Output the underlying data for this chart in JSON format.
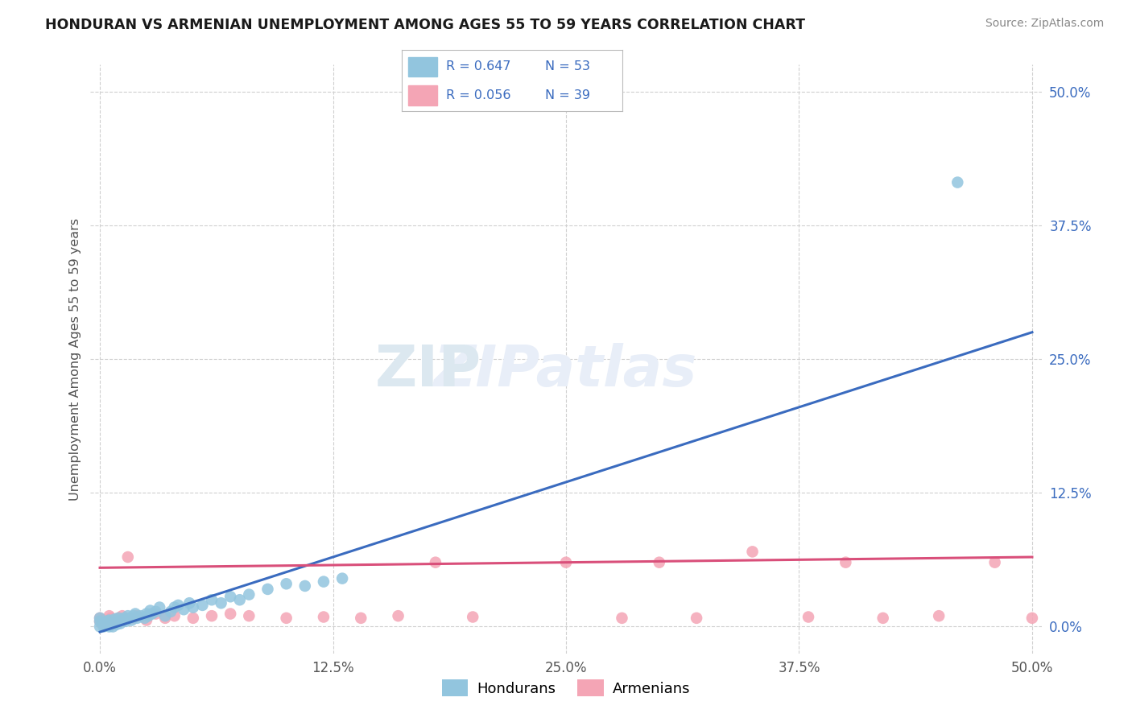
{
  "title": "HONDURAN VS ARMENIAN UNEMPLOYMENT AMONG AGES 55 TO 59 YEARS CORRELATION CHART",
  "source": "Source: ZipAtlas.com",
  "ylabel": "Unemployment Among Ages 55 to 59 years",
  "xlim": [
    -0.005,
    0.505
  ],
  "ylim": [
    -0.025,
    0.525
  ],
  "xticks": [
    0.0,
    0.125,
    0.25,
    0.375,
    0.5
  ],
  "xtick_labels": [
    "0.0%",
    "12.5%",
    "25.0%",
    "37.5%",
    "50.0%"
  ],
  "ytick_vals": [
    0.0,
    0.125,
    0.25,
    0.375,
    0.5
  ],
  "ytick_labels": [
    "0.0%",
    "12.5%",
    "25.0%",
    "37.5%",
    "50.0%"
  ],
  "blue_color": "#92c5de",
  "pink_color": "#f4a5b5",
  "blue_line_color": "#3a6bbf",
  "pink_line_color": "#d94f7a",
  "title_color": "#1a1a1a",
  "source_color": "#888888",
  "label_color": "#3a6bbf",
  "background_color": "#ffffff",
  "grid_color": "#d0d0d0",
  "watermark_color": "#e8eef8",
  "hon_r": 0.647,
  "hon_n": 53,
  "arm_r": 0.056,
  "arm_n": 39,
  "hon_line_x0": 0.0,
  "hon_line_y0": -0.005,
  "hon_line_x1": 0.5,
  "hon_line_y1": 0.275,
  "arm_line_x0": 0.0,
  "arm_line_y0": 0.055,
  "arm_line_x1": 0.5,
  "arm_line_y1": 0.065,
  "honduran_x": [
    0.0,
    0.0,
    0.0,
    0.002,
    0.002,
    0.003,
    0.004,
    0.005,
    0.005,
    0.006,
    0.007,
    0.008,
    0.008,
    0.009,
    0.01,
    0.01,
    0.011,
    0.012,
    0.013,
    0.014,
    0.015,
    0.016,
    0.017,
    0.018,
    0.019,
    0.02,
    0.022,
    0.024,
    0.025,
    0.026,
    0.027,
    0.028,
    0.03,
    0.032,
    0.035,
    0.038,
    0.04,
    0.042,
    0.045,
    0.048,
    0.05,
    0.055,
    0.06,
    0.065,
    0.07,
    0.075,
    0.08,
    0.09,
    0.1,
    0.11,
    0.12,
    0.13,
    0.46
  ],
  "honduran_y": [
    0.0,
    0.005,
    0.008,
    0.0,
    0.003,
    0.004,
    0.005,
    0.0,
    0.006,
    0.003,
    0.0,
    0.004,
    0.007,
    0.002,
    0.005,
    0.008,
    0.003,
    0.006,
    0.008,
    0.005,
    0.01,
    0.008,
    0.006,
    0.01,
    0.012,
    0.008,
    0.01,
    0.008,
    0.012,
    0.01,
    0.015,
    0.012,
    0.014,
    0.018,
    0.01,
    0.014,
    0.018,
    0.02,
    0.016,
    0.022,
    0.018,
    0.02,
    0.025,
    0.022,
    0.028,
    0.025,
    0.03,
    0.035,
    0.04,
    0.038,
    0.042,
    0.045,
    0.415
  ],
  "armenian_x": [
    0.0,
    0.0,
    0.001,
    0.002,
    0.003,
    0.004,
    0.005,
    0.006,
    0.008,
    0.01,
    0.012,
    0.015,
    0.018,
    0.02,
    0.025,
    0.03,
    0.035,
    0.04,
    0.05,
    0.06,
    0.07,
    0.08,
    0.1,
    0.12,
    0.14,
    0.16,
    0.18,
    0.2,
    0.25,
    0.28,
    0.3,
    0.32,
    0.35,
    0.38,
    0.4,
    0.42,
    0.45,
    0.48,
    0.5
  ],
  "armenian_y": [
    0.005,
    0.008,
    0.003,
    0.006,
    0.004,
    0.005,
    0.01,
    0.008,
    0.005,
    0.008,
    0.01,
    0.065,
    0.008,
    0.01,
    0.006,
    0.012,
    0.008,
    0.01,
    0.008,
    0.01,
    0.012,
    0.01,
    0.008,
    0.009,
    0.008,
    0.01,
    0.06,
    0.009,
    0.06,
    0.008,
    0.06,
    0.008,
    0.07,
    0.009,
    0.06,
    0.008,
    0.01,
    0.06,
    0.008
  ]
}
